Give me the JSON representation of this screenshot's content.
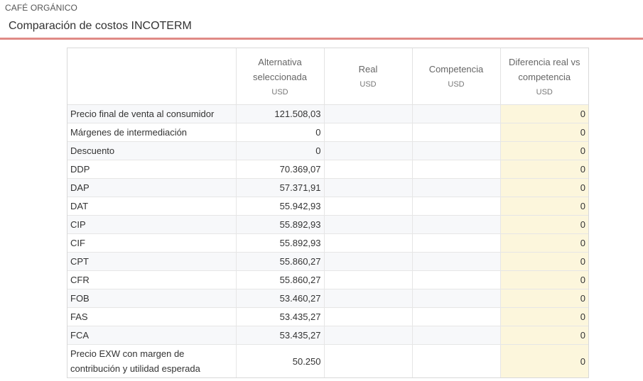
{
  "header": {
    "app_label": "CAFÉ ORGÁNICO",
    "title": "Comparación de costos INCOTERM"
  },
  "colors": {
    "accent_rule": "#e08a86",
    "highlight_column": "#fcf6dc",
    "alt_row": "#f7f8fa"
  },
  "table": {
    "columns": [
      {
        "label": "",
        "unit": ""
      },
      {
        "label": "Alternativa seleccionada",
        "unit": "USD"
      },
      {
        "label": "Real",
        "unit": "USD"
      },
      {
        "label": "Competencia",
        "unit": "USD"
      },
      {
        "label": "Diferencia real vs competencia",
        "unit": "USD"
      }
    ],
    "rows": [
      {
        "label": "Precio final de venta al consumidor",
        "selected": "121.508,03",
        "real": "",
        "competencia": "",
        "diferencia": "0"
      },
      {
        "label": "Márgenes de intermediación",
        "selected": "0",
        "real": "",
        "competencia": "",
        "diferencia": "0"
      },
      {
        "label": "Descuento",
        "selected": "0",
        "real": "",
        "competencia": "",
        "diferencia": "0"
      },
      {
        "label": "DDP",
        "selected": "70.369,07",
        "real": "",
        "competencia": "",
        "diferencia": "0"
      },
      {
        "label": "DAP",
        "selected": "57.371,91",
        "real": "",
        "competencia": "",
        "diferencia": "0"
      },
      {
        "label": "DAT",
        "selected": "55.942,93",
        "real": "",
        "competencia": "",
        "diferencia": "0"
      },
      {
        "label": "CIP",
        "selected": "55.892,93",
        "real": "",
        "competencia": "",
        "diferencia": "0"
      },
      {
        "label": "CIF",
        "selected": "55.892,93",
        "real": "",
        "competencia": "",
        "diferencia": "0"
      },
      {
        "label": "CPT",
        "selected": "55.860,27",
        "real": "",
        "competencia": "",
        "diferencia": "0"
      },
      {
        "label": "CFR",
        "selected": "55.860,27",
        "real": "",
        "competencia": "",
        "diferencia": "0"
      },
      {
        "label": "FOB",
        "selected": "53.460,27",
        "real": "",
        "competencia": "",
        "diferencia": "0"
      },
      {
        "label": "FAS",
        "selected": "53.435,27",
        "real": "",
        "competencia": "",
        "diferencia": "0"
      },
      {
        "label": "FCA",
        "selected": "53.435,27",
        "real": "",
        "competencia": "",
        "diferencia": "0"
      },
      {
        "label": "Precio EXW con margen de contribución y utilidad esperada",
        "selected": "50.250",
        "real": "",
        "competencia": "",
        "diferencia": "0"
      }
    ]
  }
}
